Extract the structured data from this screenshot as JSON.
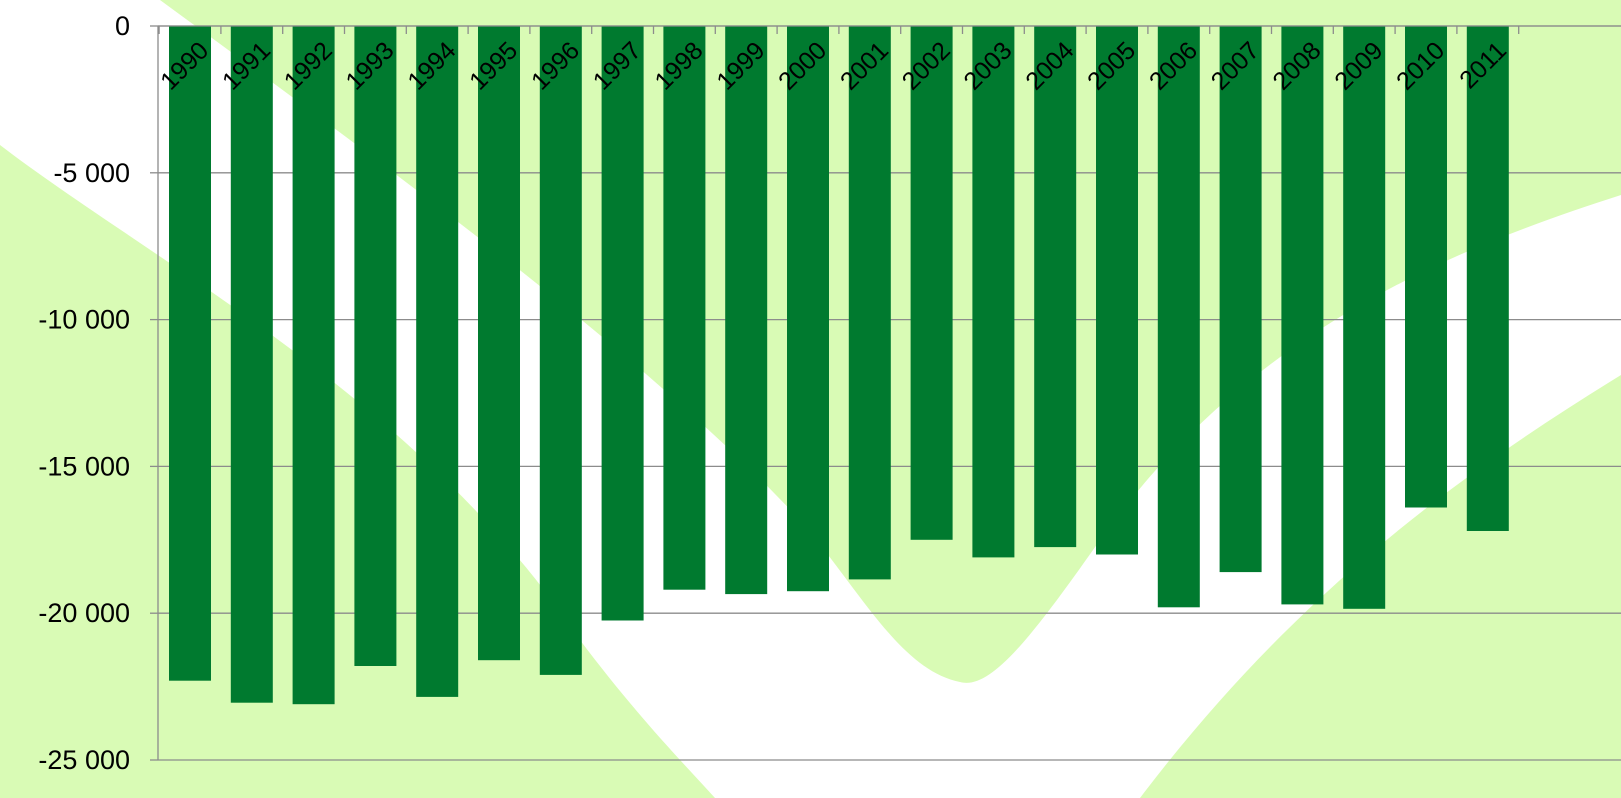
{
  "colors": {
    "bar": "#007A2F",
    "background_wave": "#D9FBB5",
    "background": "#FFFFFF",
    "gridline": "#8C8C8C",
    "axis": "#8C8C8C"
  },
  "chart_data": {
    "type": "bar",
    "title": "",
    "xlabel": "",
    "ylabel": "",
    "ylim": [
      -25000,
      0
    ],
    "yticks": [
      0,
      -5000,
      -10000,
      -15000,
      -20000,
      -25000
    ],
    "ytick_labels": [
      "0",
      "-5 000",
      "-10 000",
      "-15 000",
      "-20 000",
      "-25 000"
    ],
    "grid": true,
    "legend": "none",
    "categories": [
      "1990",
      "1991",
      "1992",
      "1993",
      "1994",
      "1995",
      "1996",
      "1997",
      "1998",
      "1999",
      "2000",
      "2001",
      "2002",
      "2003",
      "2004",
      "2005",
      "2006",
      "2007",
      "2008",
      "2009",
      "2010",
      "2011"
    ],
    "values": [
      -22300,
      -23050,
      -23100,
      -21800,
      -22850,
      -21600,
      -22100,
      -20250,
      -19200,
      -19350,
      -19250,
      -18850,
      -17500,
      -18100,
      -17750,
      -18000,
      -19800,
      -18600,
      -19700,
      -19850,
      -16400,
      -17200
    ]
  }
}
